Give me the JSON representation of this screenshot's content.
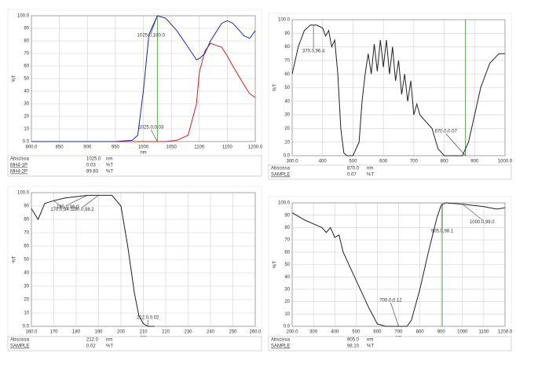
{
  "chart_data": [
    {
      "type": "line",
      "xlabel": "nm",
      "ylabel": "%T",
      "x": [
        800,
        850,
        900,
        950,
        980,
        990,
        1000,
        1010,
        1025,
        1040,
        1060,
        1080,
        1095,
        1100,
        1110,
        1120,
        1140,
        1150,
        1160,
        1180,
        1190,
        1200
      ],
      "series": [
        {
          "name": "MH4-1P",
          "color": "#d02020",
          "values": [
            0,
            0,
            0,
            0,
            0,
            0,
            0,
            0,
            0,
            0,
            1,
            5,
            30,
            55,
            72,
            78,
            75,
            68,
            60,
            45,
            38,
            35
          ]
        },
        {
          "name": "MH4-2P",
          "color": "#2020c0",
          "values": [
            0,
            0,
            0,
            0,
            1,
            5,
            40,
            85,
            100,
            98,
            88,
            75,
            65,
            66,
            70,
            80,
            94,
            96,
            94,
            84,
            82,
            88
          ]
        }
      ],
      "xlim": [
        800,
        1200
      ],
      "xticks": [
        {
          "value": 800,
          "label": "800.0"
        },
        850,
        900,
        950,
        1000,
        1050,
        1100,
        1150,
        {
          "value": 1200,
          "label": "1200.0"
        }
      ],
      "ylim": [
        0,
        100
      ],
      "yticks": [
        {
          "value": 0,
          "label": "0.0"
        },
        10,
        20,
        30,
        40,
        50,
        60,
        70,
        80,
        90,
        {
          "value": 100,
          "label": "100.0"
        }
      ],
      "grid": true,
      "cursor": 1025,
      "cursor_color": "#2a9a2a",
      "annotations": [
        {
          "text": "1025.0,100.0",
          "x": 1025,
          "y": 100
        },
        {
          "text": "1025.0,0.03",
          "x": 1025,
          "y": 0
        }
      ],
      "readout_header": [
        "Abscissa",
        "1025.0",
        "nm"
      ],
      "readout_values": [
        [
          "0.03",
          "%T"
        ],
        [
          "99.83",
          "%T"
        ]
      ]
    },
    {
      "type": "line",
      "xlabel": "nm",
      "ylabel": "%T",
      "x": [
        300,
        320,
        340,
        360,
        380,
        400,
        410,
        420,
        430,
        440,
        450,
        460,
        470,
        480,
        500,
        520,
        530,
        540,
        550,
        560,
        570,
        580,
        590,
        600,
        610,
        620,
        630,
        640,
        650,
        660,
        670,
        680,
        690,
        700,
        710,
        720,
        740,
        760,
        780,
        800,
        860,
        880,
        900,
        920,
        950,
        980,
        1000
      ],
      "series": [
        {
          "name": "SAMPLE",
          "color": "#222222",
          "values": [
            60,
            80,
            92,
            96,
            96,
            94,
            88,
            92,
            80,
            85,
            60,
            20,
            2,
            0,
            0,
            10,
            40,
            60,
            75,
            60,
            82,
            62,
            85,
            65,
            85,
            60,
            80,
            55,
            70,
            45,
            60,
            40,
            55,
            30,
            38,
            30,
            25,
            20,
            5,
            0,
            0,
            10,
            30,
            50,
            68,
            75,
            75
          ]
        }
      ],
      "xlim": [
        300,
        1000
      ],
      "xticks": [
        {
          "value": 300,
          "label": "300.0"
        },
        400,
        500,
        600,
        700,
        800,
        900,
        {
          "value": 1000,
          "label": "1000.0"
        }
      ],
      "ylim": [
        0,
        100
      ],
      "yticks": [
        {
          "value": 0,
          "label": "0.0"
        },
        10,
        20,
        30,
        40,
        50,
        60,
        70,
        80,
        90,
        {
          "value": 100,
          "label": "100.0"
        }
      ],
      "grid": true,
      "cursor": 870,
      "cursor_color": "#2a9a2a",
      "annotations": [
        {
          "text": "370.0,96.4",
          "x": 370,
          "y": 96
        },
        {
          "text": "870.0,0.07",
          "x": 870,
          "y": 0
        }
      ],
      "readout_header": [
        "Abscissa",
        "870.0",
        "nm"
      ],
      "readout_values": [
        [
          "0.07",
          "%T"
        ]
      ]
    },
    {
      "type": "line",
      "xlabel": "nm",
      "ylabel": "%T",
      "x": [
        160,
        163,
        166,
        170,
        175,
        180,
        185,
        190,
        196,
        200,
        203,
        206,
        208,
        210,
        212,
        215
      ],
      "series": [
        {
          "name": "SAMPLE",
          "color": "#222222",
          "values": [
            88,
            80,
            92,
            94,
            96,
            97,
            98,
            98,
            98,
            90,
            60,
            25,
            8,
            2,
            0,
            0
          ]
        }
      ],
      "xlim": [
        160,
        260
      ],
      "xticks": [
        {
          "value": 160,
          "label": "160.0"
        },
        170,
        180,
        190,
        200,
        210,
        220,
        230,
        240,
        250,
        {
          "value": 260,
          "label": "260.0"
        }
      ],
      "ylim": [
        0,
        100
      ],
      "yticks": [
        {
          "value": 0,
          "label": "0.0"
        },
        10,
        20,
        30,
        40,
        50,
        60,
        70,
        80,
        90,
        {
          "value": 100,
          "label": "100.0"
        }
      ],
      "grid": true,
      "annotations": [
        {
          "text": "170.0,94.1",
          "x": 170,
          "y": 94
        },
        {
          "text": "185.0,98.0",
          "x": 185,
          "y": 98
        },
        {
          "text": "190.0,98.2",
          "x": 190,
          "y": 98
        },
        {
          "text": "212.0,0.02",
          "x": 212,
          "y": 0
        }
      ],
      "readout_header": [
        "Abscissa",
        "212.0",
        "nm"
      ],
      "readout_values": [
        [
          "0.02",
          "%T"
        ]
      ]
    },
    {
      "type": "line",
      "xlabel": "nm",
      "ylabel": "%T",
      "x": [
        200,
        260,
        300,
        340,
        360,
        380,
        400,
        420,
        440,
        480,
        520,
        560,
        600,
        640,
        680,
        740,
        760,
        800,
        840,
        880,
        900,
        920,
        1000,
        1100,
        1160,
        1200
      ],
      "series": [
        {
          "name": "SAMPLE",
          "color": "#222222",
          "values": [
            92,
            86,
            83,
            80,
            76,
            80,
            72,
            74,
            60,
            45,
            30,
            15,
            2,
            0,
            0,
            0,
            5,
            30,
            60,
            88,
            98,
            100,
            99,
            97,
            95,
            96
          ]
        }
      ],
      "xlim": [
        200,
        1200
      ],
      "xticks": [
        {
          "value": 200,
          "label": "200.0"
        },
        300,
        400,
        500,
        600,
        700,
        800,
        900,
        1000,
        1100,
        {
          "value": 1200,
          "label": "1200.0"
        }
      ],
      "ylim": [
        0,
        100
      ],
      "yticks": [
        {
          "value": 0,
          "label": "0.0"
        },
        10,
        20,
        30,
        40,
        50,
        60,
        70,
        80,
        90,
        {
          "value": 100,
          "label": "100.0"
        }
      ],
      "grid": true,
      "cursor": 905,
      "cursor_color": "#2a9a2a",
      "annotations": [
        {
          "text": "700.0,0.12",
          "x": 700,
          "y": 0
        },
        {
          "text": "905.0,98.1",
          "x": 905,
          "y": 98
        },
        {
          "text": "1000.0,99.0",
          "x": 1000,
          "y": 99
        }
      ],
      "readout_header": [
        "Abscissa",
        "905.0",
        "nm"
      ],
      "readout_values": [
        [
          "98.10",
          "%T"
        ]
      ]
    }
  ]
}
